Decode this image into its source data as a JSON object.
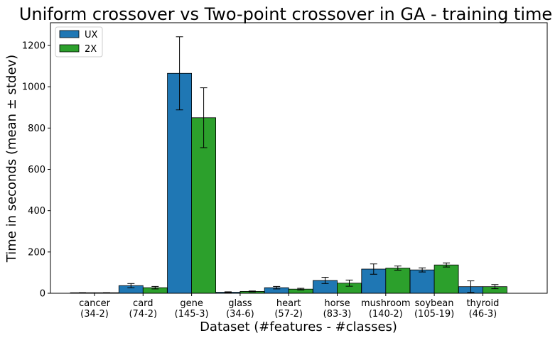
{
  "chart_data": {
    "type": "bar",
    "title": "Uniform crossover vs Two-point crossover in GA - training time",
    "xlabel": "Dataset (#features - #classes)",
    "ylabel": "Time in seconds (mean ± stdev)",
    "ylim": [
      0,
      1310
    ],
    "yticks": [
      0,
      200,
      400,
      600,
      800,
      1000,
      1200
    ],
    "grid": false,
    "legend_position": "top-left",
    "categories": [
      {
        "name": "cancer",
        "detail": "(34-2)"
      },
      {
        "name": "card",
        "detail": "(74-2)"
      },
      {
        "name": "gene",
        "detail": "(145-3)"
      },
      {
        "name": "glass",
        "detail": "(34-6)"
      },
      {
        "name": "heart",
        "detail": "(57-2)"
      },
      {
        "name": "horse",
        "detail": "(83-3)"
      },
      {
        "name": "mushroom",
        "detail": "(140-2)"
      },
      {
        "name": "soybean",
        "detail": "(105-19)"
      },
      {
        "name": "thyroid",
        "detail": "(46-3)"
      }
    ],
    "series": [
      {
        "name": "UX",
        "color": "#1f77b4",
        "values": [
          2,
          37,
          1065,
          5,
          27,
          62,
          117,
          113,
          32
        ],
        "errors": [
          1,
          10,
          177,
          2,
          6,
          15,
          25,
          10,
          28
        ]
      },
      {
        "name": "2X",
        "color": "#2ca02c",
        "values": [
          2,
          27,
          850,
          9,
          20,
          49,
          122,
          137,
          32
        ],
        "errors": [
          1,
          6,
          145,
          2,
          4,
          15,
          10,
          10,
          10
        ]
      }
    ]
  }
}
